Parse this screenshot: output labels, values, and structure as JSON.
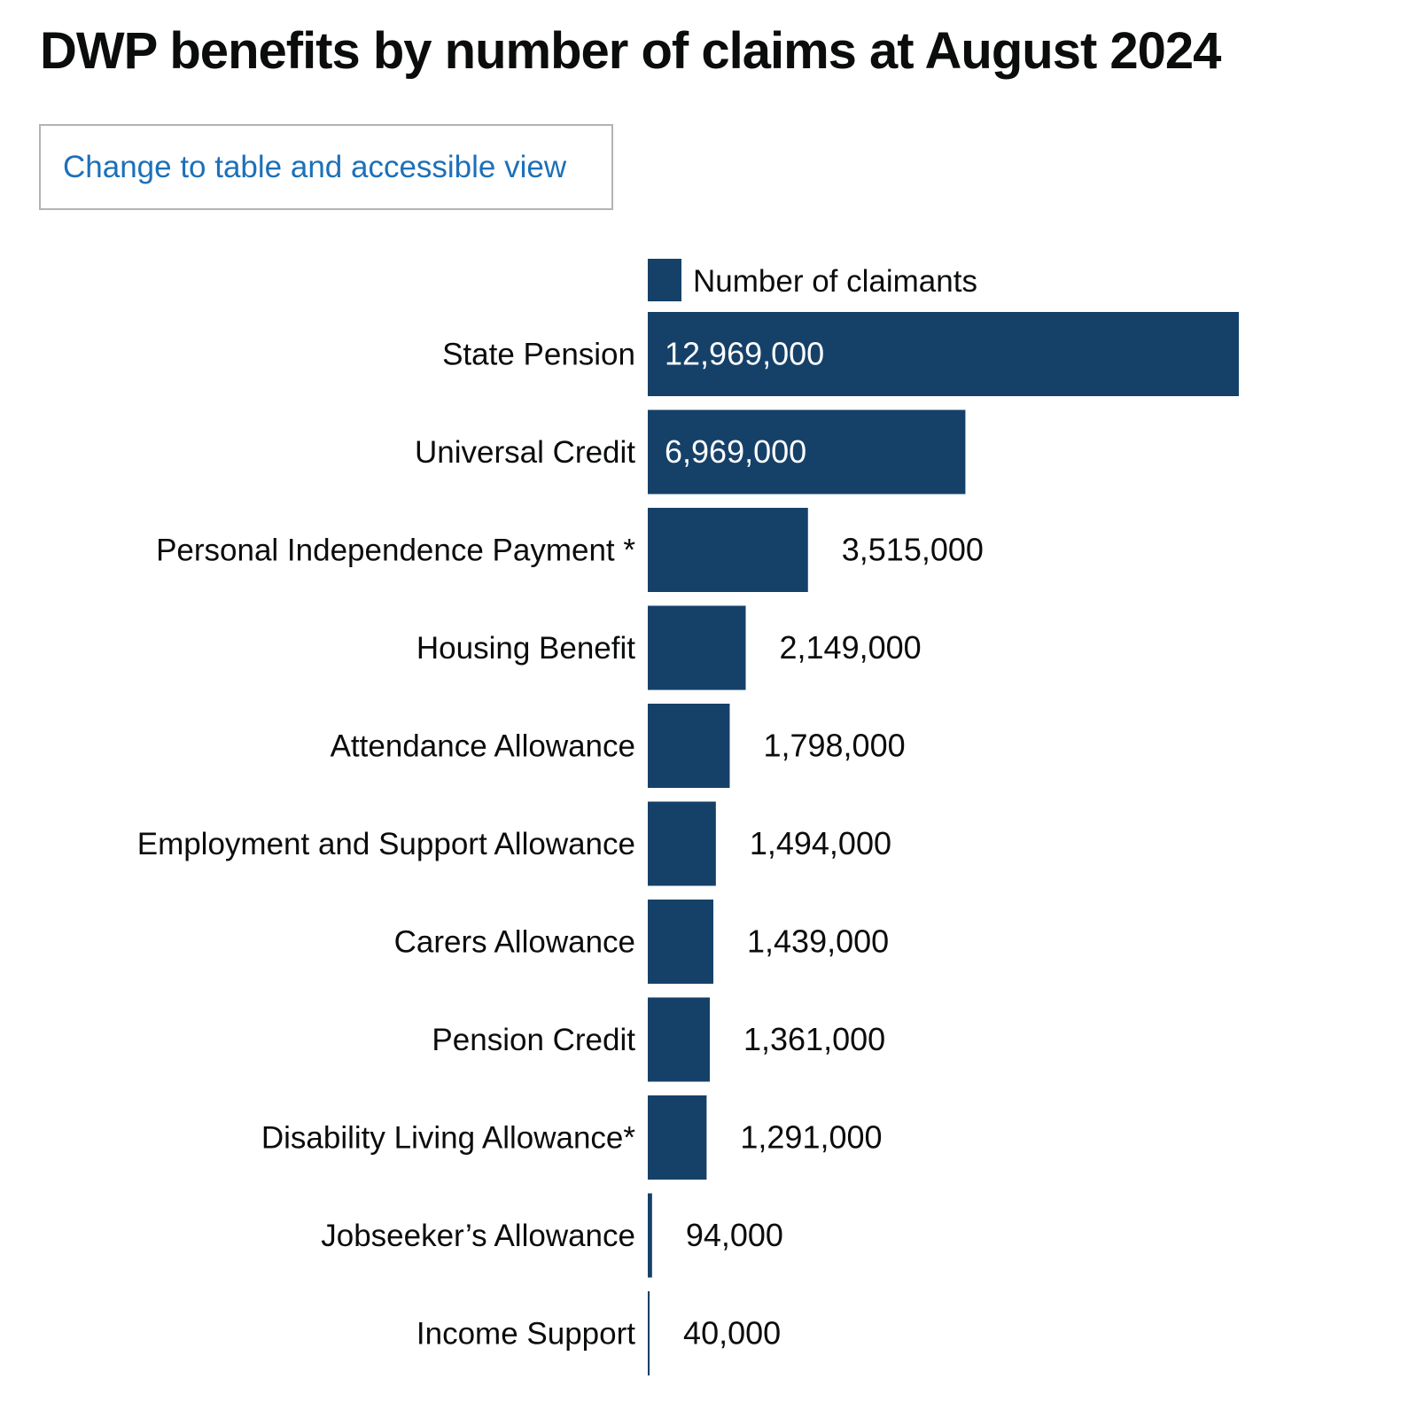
{
  "page": {
    "title": "DWP benefits by number of claims at August 2024",
    "toggle_label": "Change to table and accessible view"
  },
  "colors": {
    "bar": "#154169",
    "text": "#0b0c0c",
    "link": "#1d70b8",
    "label_inside": "#ffffff"
  },
  "chart_data": {
    "type": "bar",
    "orientation": "horizontal",
    "title": "DWP benefits by number of claims at August 2024",
    "categories": [
      "State Pension",
      "Universal Credit",
      "Personal Independence Payment *",
      "Housing Benefit",
      "Attendance Allowance",
      "Employment and Support Allowance",
      "Carers Allowance",
      "Pension Credit",
      "Disability Living Allowance*",
      "Jobseeker’s Allowance",
      "Income Support"
    ],
    "series": [
      {
        "name": "Number of claimants",
        "values": [
          12969000,
          6969000,
          3515000,
          2149000,
          1798000,
          1494000,
          1439000,
          1361000,
          1291000,
          94000,
          40000
        ],
        "labels": [
          "12,969,000",
          "6,969,000",
          "3,515,000",
          "2,149,000",
          "1,798,000",
          "1,494,000",
          "1,439,000",
          "1,361,000",
          "1,291,000",
          "94,000",
          "40,000"
        ]
      }
    ],
    "xlim": [
      0,
      12969000
    ],
    "legend": "top",
    "grid": false
  }
}
